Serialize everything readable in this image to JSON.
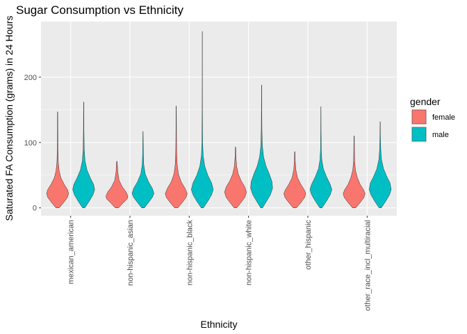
{
  "chart_data": {
    "type": "violin",
    "title": "Sugar Consumption vs Ethnicity",
    "xlabel": "Ethnicity",
    "ylabel": "Saturated FA Consumption (grams) in 24 Hours",
    "categories": [
      "mexican_american",
      "non-hispanic_asian",
      "non-hispanic_black",
      "non-hispanic_white",
      "other_hispanic",
      "other_race_incl_multiracial"
    ],
    "ylim": [
      -12,
      285
    ],
    "yticks": [
      0,
      100,
      200
    ],
    "grid": true,
    "legend": {
      "title": "gender",
      "placement": "right",
      "entries": [
        "female",
        "male"
      ]
    },
    "series": [
      {
        "name": "female",
        "color": "#F8766D",
        "max": [
          147,
          71,
          156,
          93,
          86,
          110
        ],
        "shape": [
          [
            [
              0,
              0.15
            ],
            [
              8,
              0.55
            ],
            [
              16,
              0.9
            ],
            [
              22,
              1.0
            ],
            [
              28,
              0.9
            ],
            [
              36,
              0.6
            ],
            [
              46,
              0.3
            ],
            [
              56,
              0.15
            ],
            [
              70,
              0.06
            ],
            [
              90,
              0.03
            ],
            [
              120,
              0.02
            ],
            [
              147,
              0.015
            ]
          ],
          [
            [
              0,
              0.15
            ],
            [
              8,
              0.6
            ],
            [
              14,
              0.95
            ],
            [
              18,
              1.0
            ],
            [
              24,
              0.85
            ],
            [
              32,
              0.5
            ],
            [
              42,
              0.2
            ],
            [
              55,
              0.08
            ],
            [
              71,
              0.03
            ]
          ],
          [
            [
              0,
              0.15
            ],
            [
              8,
              0.55
            ],
            [
              16,
              0.9
            ],
            [
              22,
              1.0
            ],
            [
              30,
              0.8
            ],
            [
              40,
              0.45
            ],
            [
              52,
              0.2
            ],
            [
              66,
              0.09
            ],
            [
              90,
              0.04
            ],
            [
              120,
              0.02
            ],
            [
              156,
              0.01
            ]
          ],
          [
            [
              0,
              0.12
            ],
            [
              8,
              0.5
            ],
            [
              16,
              0.85
            ],
            [
              24,
              1.0
            ],
            [
              32,
              0.85
            ],
            [
              42,
              0.5
            ],
            [
              52,
              0.25
            ],
            [
              64,
              0.1
            ],
            [
              78,
              0.04
            ],
            [
              93,
              0.02
            ]
          ],
          [
            [
              0,
              0.15
            ],
            [
              8,
              0.55
            ],
            [
              16,
              0.9
            ],
            [
              22,
              1.0
            ],
            [
              28,
              0.85
            ],
            [
              36,
              0.55
            ],
            [
              46,
              0.25
            ],
            [
              58,
              0.1
            ],
            [
              72,
              0.04
            ],
            [
              86,
              0.02
            ]
          ],
          [
            [
              0,
              0.15
            ],
            [
              8,
              0.55
            ],
            [
              16,
              0.9
            ],
            [
              22,
              1.0
            ],
            [
              28,
              0.85
            ],
            [
              36,
              0.55
            ],
            [
              46,
              0.3
            ],
            [
              58,
              0.12
            ],
            [
              72,
              0.05
            ],
            [
              90,
              0.03
            ],
            [
              110,
              0.015
            ]
          ]
        ]
      },
      {
        "name": "male",
        "color": "#00BFC4",
        "max": [
          162,
          117,
          270,
          188,
          155,
          132
        ],
        "shape": [
          [
            [
              0,
              0.1
            ],
            [
              10,
              0.5
            ],
            [
              20,
              0.85
            ],
            [
              28,
              1.0
            ],
            [
              36,
              0.9
            ],
            [
              46,
              0.6
            ],
            [
              58,
              0.3
            ],
            [
              72,
              0.12
            ],
            [
              90,
              0.05
            ],
            [
              120,
              0.02
            ],
            [
              162,
              0.01
            ]
          ],
          [
            [
              0,
              0.12
            ],
            [
              8,
              0.5
            ],
            [
              16,
              0.85
            ],
            [
              22,
              1.0
            ],
            [
              30,
              0.85
            ],
            [
              40,
              0.5
            ],
            [
              52,
              0.2
            ],
            [
              66,
              0.07
            ],
            [
              85,
              0.03
            ],
            [
              117,
              0.01
            ]
          ],
          [
            [
              0,
              0.1
            ],
            [
              10,
              0.5
            ],
            [
              20,
              0.85
            ],
            [
              28,
              1.0
            ],
            [
              38,
              0.85
            ],
            [
              50,
              0.5
            ],
            [
              64,
              0.22
            ],
            [
              80,
              0.08
            ],
            [
              100,
              0.03
            ],
            [
              150,
              0.012
            ],
            [
              200,
              0.008
            ],
            [
              270,
              0.006
            ]
          ],
          [
            [
              0,
              0.08
            ],
            [
              10,
              0.45
            ],
            [
              20,
              0.8
            ],
            [
              30,
              1.0
            ],
            [
              40,
              0.95
            ],
            [
              52,
              0.7
            ],
            [
              64,
              0.4
            ],
            [
              78,
              0.18
            ],
            [
              95,
              0.07
            ],
            [
              120,
              0.03
            ],
            [
              150,
              0.015
            ],
            [
              188,
              0.008
            ]
          ],
          [
            [
              0,
              0.1
            ],
            [
              10,
              0.5
            ],
            [
              20,
              0.85
            ],
            [
              28,
              1.0
            ],
            [
              36,
              0.85
            ],
            [
              48,
              0.5
            ],
            [
              60,
              0.22
            ],
            [
              74,
              0.08
            ],
            [
              90,
              0.03
            ],
            [
              120,
              0.015
            ],
            [
              155,
              0.008
            ]
          ],
          [
            [
              0,
              0.1
            ],
            [
              10,
              0.5
            ],
            [
              20,
              0.85
            ],
            [
              28,
              1.0
            ],
            [
              38,
              0.9
            ],
            [
              48,
              0.6
            ],
            [
              60,
              0.3
            ],
            [
              74,
              0.12
            ],
            [
              90,
              0.05
            ],
            [
              110,
              0.02
            ],
            [
              132,
              0.01
            ]
          ]
        ]
      }
    ]
  }
}
